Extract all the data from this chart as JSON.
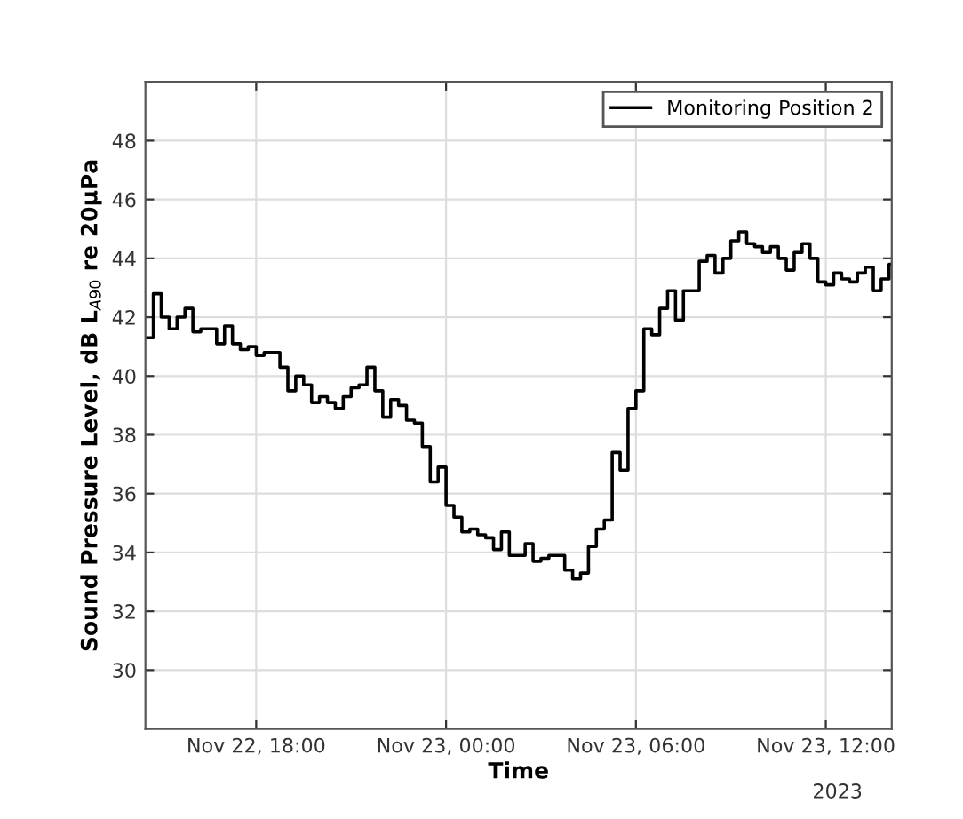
{
  "chart_data": {
    "type": "step",
    "xlabel": "Time",
    "ylabel": "Sound Pressure Level, dB L$_{A90}$ re 20μPa",
    "annotations": [
      "2023"
    ],
    "x": [
      "2023-11-22T14:30",
      "2023-11-22T14:45",
      "2023-11-22T15:00",
      "2023-11-22T15:15",
      "2023-11-22T15:30",
      "2023-11-22T15:45",
      "2023-11-22T16:00",
      "2023-11-22T16:15",
      "2023-11-22T16:30",
      "2023-11-22T16:45",
      "2023-11-22T17:00",
      "2023-11-22T17:15",
      "2023-11-22T17:30",
      "2023-11-22T17:45",
      "2023-11-22T18:00",
      "2023-11-22T18:15",
      "2023-11-22T18:30",
      "2023-11-22T18:45",
      "2023-11-22T19:00",
      "2023-11-22T19:15",
      "2023-11-22T19:30",
      "2023-11-22T19:45",
      "2023-11-22T20:00",
      "2023-11-22T20:15",
      "2023-11-22T20:30",
      "2023-11-22T20:45",
      "2023-11-22T21:00",
      "2023-11-22T21:15",
      "2023-11-22T21:30",
      "2023-11-22T21:45",
      "2023-11-22T22:00",
      "2023-11-22T22:15",
      "2023-11-22T22:30",
      "2023-11-22T22:45",
      "2023-11-22T23:00",
      "2023-11-22T23:15",
      "2023-11-22T23:30",
      "2023-11-22T23:45",
      "2023-11-23T00:00",
      "2023-11-23T00:15",
      "2023-11-23T00:30",
      "2023-11-23T00:45",
      "2023-11-23T01:00",
      "2023-11-23T01:15",
      "2023-11-23T01:30",
      "2023-11-23T01:45",
      "2023-11-23T02:00",
      "2023-11-23T02:15",
      "2023-11-23T02:30",
      "2023-11-23T02:45",
      "2023-11-23T03:00",
      "2023-11-23T03:15",
      "2023-11-23T03:30",
      "2023-11-23T03:45",
      "2023-11-23T04:00",
      "2023-11-23T04:15",
      "2023-11-23T04:30",
      "2023-11-23T04:45",
      "2023-11-23T05:00",
      "2023-11-23T05:15",
      "2023-11-23T05:30",
      "2023-11-23T05:45",
      "2023-11-23T06:00",
      "2023-11-23T06:15",
      "2023-11-23T06:30",
      "2023-11-23T06:45",
      "2023-11-23T07:00",
      "2023-11-23T07:15",
      "2023-11-23T07:30",
      "2023-11-23T07:45",
      "2023-11-23T08:00",
      "2023-11-23T08:15",
      "2023-11-23T08:30",
      "2023-11-23T08:45",
      "2023-11-23T09:00",
      "2023-11-23T09:15",
      "2023-11-23T09:30",
      "2023-11-23T09:45",
      "2023-11-23T10:00",
      "2023-11-23T10:15",
      "2023-11-23T10:30",
      "2023-11-23T10:45",
      "2023-11-23T11:00",
      "2023-11-23T11:15",
      "2023-11-23T11:30",
      "2023-11-23T11:45",
      "2023-11-23T12:00",
      "2023-11-23T12:15",
      "2023-11-23T12:30",
      "2023-11-23T12:45",
      "2023-11-23T13:00",
      "2023-11-23T13:15",
      "2023-11-23T13:30",
      "2023-11-23T13:45",
      "2023-11-23T14:00"
    ],
    "series": [
      {
        "name": "Monitoring Position 2",
        "color": "#000000",
        "values": [
          41.3,
          42.8,
          42.0,
          41.6,
          42.0,
          42.3,
          41.5,
          41.6,
          41.6,
          41.1,
          41.7,
          41.1,
          40.9,
          41.0,
          40.7,
          40.8,
          40.8,
          40.3,
          39.5,
          40.0,
          39.7,
          39.1,
          39.3,
          39.1,
          38.9,
          39.3,
          39.6,
          39.7,
          40.3,
          39.5,
          38.6,
          39.2,
          39.0,
          38.5,
          38.4,
          37.6,
          36.4,
          36.9,
          35.6,
          35.2,
          34.7,
          34.8,
          34.6,
          34.5,
          34.1,
          34.7,
          33.9,
          33.9,
          34.3,
          33.7,
          33.8,
          33.9,
          33.9,
          33.4,
          33.1,
          33.3,
          34.2,
          34.8,
          35.1,
          37.4,
          36.8,
          38.9,
          39.5,
          41.6,
          41.4,
          42.3,
          42.9,
          41.9,
          42.9,
          42.9,
          43.9,
          44.1,
          43.5,
          44.0,
          44.6,
          44.9,
          44.5,
          44.4,
          44.2,
          44.4,
          44.0,
          43.6,
          44.2,
          44.5,
          44.0,
          43.2,
          43.1,
          43.5,
          43.3,
          43.2,
          43.5,
          43.7,
          42.9,
          43.3,
          43.8
        ]
      }
    ],
    "xlim": [
      "2023-11-22T14:30",
      "2023-11-23T14:05"
    ],
    "xticks": [
      {
        "value": "2023-11-22T18:00",
        "label": "Nov 22, 18:00"
      },
      {
        "value": "2023-11-23T00:00",
        "label": "Nov 23, 00:00"
      },
      {
        "value": "2023-11-23T06:00",
        "label": "Nov 23, 06:00"
      },
      {
        "value": "2023-11-23T12:00",
        "label": "Nov 23, 12:00"
      }
    ],
    "ylim": [
      28,
      50
    ],
    "yticks": [
      30,
      32,
      34,
      36,
      38,
      40,
      42,
      44,
      46,
      48
    ],
    "grid": true,
    "legend": "top right",
    "line_style": "solid",
    "marker": "none"
  }
}
